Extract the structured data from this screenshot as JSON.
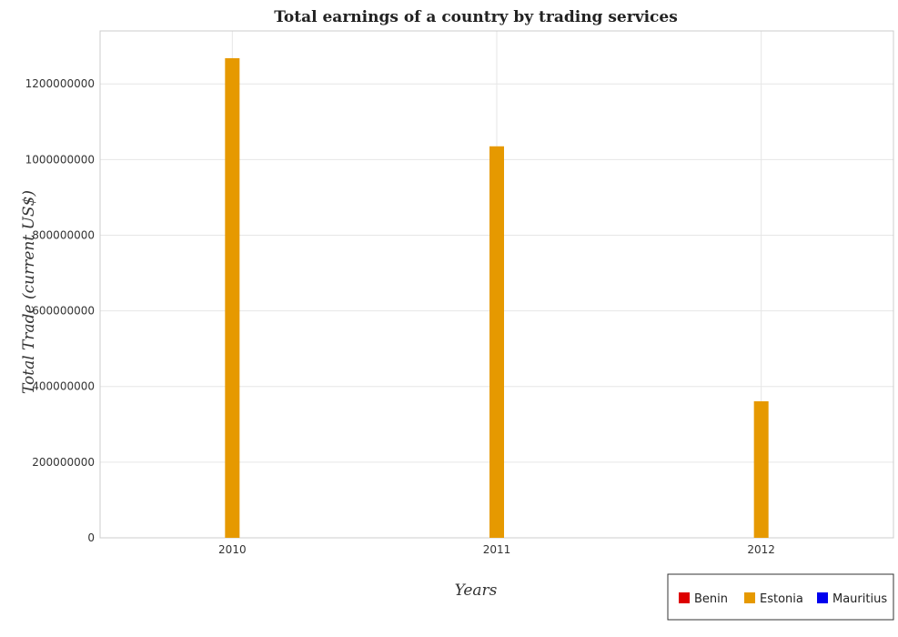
{
  "chart_data": {
    "type": "bar",
    "title": "Total earnings of a country by trading services",
    "xlabel": "Years",
    "ylabel": "Total Trade (current US$)",
    "categories": [
      "2010",
      "2011",
      "2012"
    ],
    "series": [
      {
        "name": "Benin",
        "color": "#dd0000",
        "values": [
          0,
          0,
          0
        ]
      },
      {
        "name": "Estonia",
        "color": "#e69900",
        "values": [
          1268000000,
          1035000000,
          361000000
        ]
      },
      {
        "name": "Mauritius",
        "color": "#0000ee",
        "values": [
          0,
          0,
          0
        ]
      }
    ],
    "ylim": [
      0,
      1340000000
    ],
    "yticks": [
      0,
      200000000,
      400000000,
      600000000,
      800000000,
      1000000000,
      1200000000
    ],
    "ytick_labels": [
      "0",
      "200000000",
      "400000000",
      "600000000",
      "800000000",
      "1000000000",
      "1200000000"
    ],
    "grid": true,
    "legend_position": "bottom-right"
  }
}
